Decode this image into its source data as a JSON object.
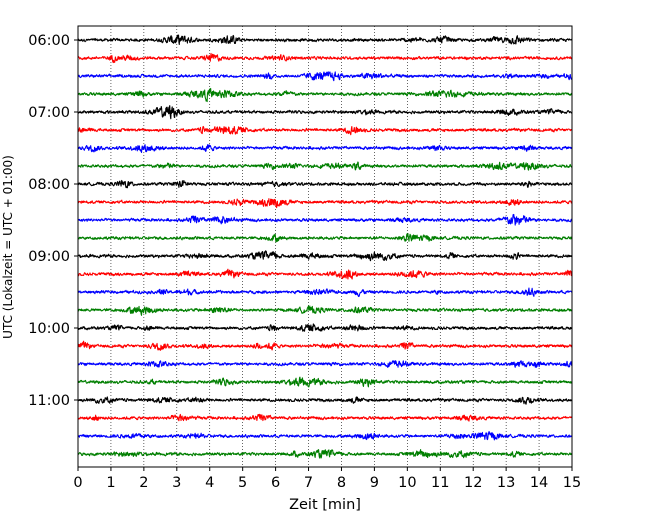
{
  "chart_data": {
    "type": "line",
    "xlabel": "Zeit  [min]",
    "ylabel": "UTC (Lokalzeit = UTC + 01:00)",
    "xlim": [
      0,
      15
    ],
    "x_ticks": [
      0,
      1,
      2,
      3,
      4,
      5,
      6,
      7,
      8,
      9,
      10,
      11,
      12,
      13,
      14,
      15
    ],
    "x_tick_labels": [
      "0",
      "1",
      "2",
      "3",
      "4",
      "5",
      "6",
      "7",
      "8",
      "9",
      "10",
      "11",
      "12",
      "13",
      "14",
      "15"
    ],
    "y_tick_labels": [
      "06:00",
      "07:00",
      "08:00",
      "09:00",
      "10:00",
      "11:00"
    ],
    "y_tick_rows": [
      0,
      4,
      8,
      12,
      16,
      20
    ],
    "trace_minutes": 15,
    "trace_count": 24,
    "trace_colors": [
      "#000000",
      "#ff0000",
      "#0000ff",
      "#007f00"
    ],
    "grid": "vertical-dotted"
  }
}
